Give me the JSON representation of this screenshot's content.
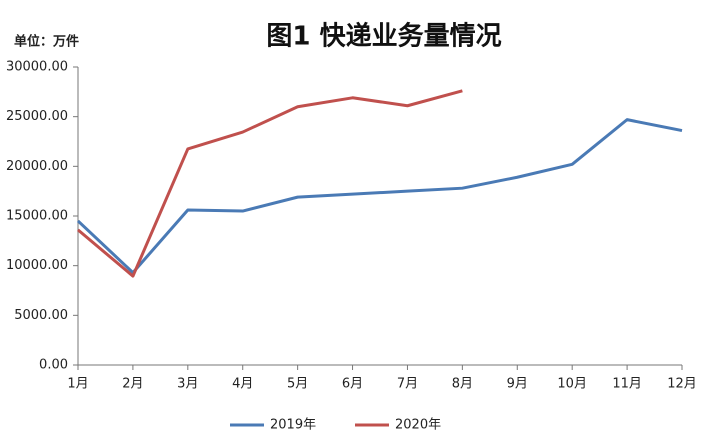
{
  "chart_data": {
    "type": "line",
    "title": "图1  快递业务量情况",
    "unit_label": "单位：万件",
    "categories": [
      "1月",
      "2月",
      "3月",
      "4月",
      "5月",
      "6月",
      "7月",
      "8月",
      "9月",
      "10月",
      "11月",
      "12月"
    ],
    "series": [
      {
        "name": "2019年",
        "color": "#4a7ab5",
        "values": [
          14500,
          9300,
          15600,
          15500,
          16900,
          17200,
          17500,
          17800,
          18900,
          20200,
          24700,
          23600
        ]
      },
      {
        "name": "2020年",
        "color": "#c0504d",
        "values": [
          13600,
          8950,
          21750,
          23450,
          26000,
          26900,
          26100,
          27600,
          null,
          null,
          null,
          null
        ]
      }
    ],
    "ylim": [
      0,
      30000
    ],
    "yticks": [
      {
        "value": 0,
        "label": "0.00"
      },
      {
        "value": 5000,
        "label": "5000.00"
      },
      {
        "value": 10000,
        "label": "10000.00"
      },
      {
        "value": 15000,
        "label": "15000.00"
      },
      {
        "value": 20000,
        "label": "20000.00"
      },
      {
        "value": 25000,
        "label": "25000.00"
      },
      {
        "value": 30000,
        "label": "30000.00"
      }
    ],
    "grid": false,
    "legend": "bottom"
  }
}
